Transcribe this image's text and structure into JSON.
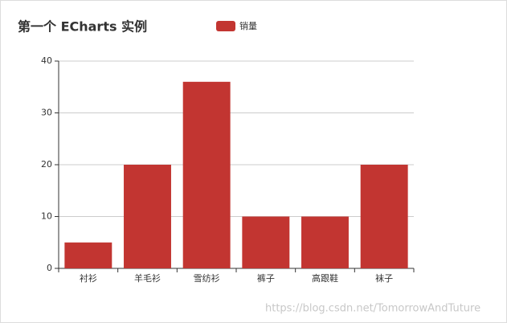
{
  "chart_data": {
    "type": "bar",
    "title": "第一个 ECharts 实例",
    "categories": [
      "衬衫",
      "羊毛衫",
      "雪纺衫",
      "裤子",
      "高跟鞋",
      "袜子"
    ],
    "series": [
      {
        "name": "销量",
        "color": "#c23531",
        "values": [
          5,
          20,
          36,
          10,
          10,
          20
        ]
      }
    ],
    "ylim": [
      0,
      40
    ],
    "yticks": [
      0,
      10,
      20,
      30,
      40
    ],
    "grid": true,
    "legend": "top",
    "watermark": "https://blog.csdn.net/TomorrowAndTuture"
  }
}
